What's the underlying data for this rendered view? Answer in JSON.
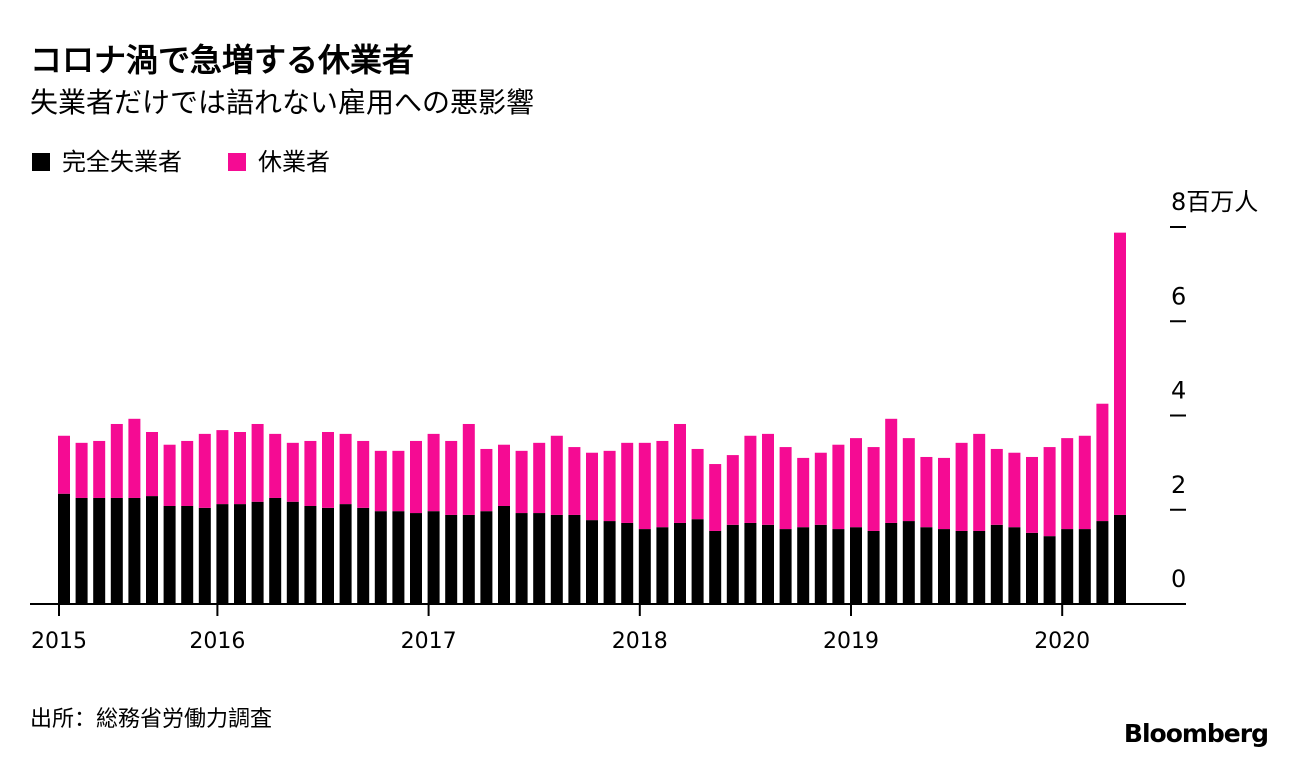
{
  "chart_data": {
    "type": "bar",
    "stacked": true,
    "title": "コロナ渦で急増する休業者",
    "subtitle": "失業者だけでは語れない雇用への悪影響",
    "source": "出所：総務省労働力調査",
    "brand": "Bloomberg",
    "categories": [
      "2015",
      null,
      null,
      null,
      null,
      null,
      null,
      null,
      null,
      "2016",
      null,
      null,
      null,
      null,
      null,
      null,
      null,
      null,
      null,
      null,
      null,
      "2017",
      null,
      null,
      null,
      null,
      null,
      null,
      null,
      null,
      null,
      null,
      null,
      "2018",
      null,
      null,
      null,
      null,
      null,
      null,
      null,
      null,
      null,
      null,
      null,
      "2019",
      null,
      null,
      null,
      null,
      null,
      null,
      null,
      null,
      null,
      null,
      null,
      "2020",
      null,
      null,
      null
    ],
    "series": [
      {
        "name": "完全失業者",
        "color": "#000000",
        "values": [
          2.34,
          2.25,
          2.25,
          2.25,
          2.25,
          2.29,
          2.08,
          2.08,
          2.04,
          2.12,
          2.12,
          2.17,
          2.25,
          2.17,
          2.08,
          2.04,
          2.12,
          2.04,
          1.97,
          1.97,
          1.93,
          1.97,
          1.89,
          1.89,
          1.97,
          2.08,
          1.93,
          1.93,
          1.89,
          1.89,
          1.78,
          1.76,
          1.72,
          1.59,
          1.63,
          1.72,
          1.8,
          1.55,
          1.68,
          1.72,
          1.68,
          1.59,
          1.63,
          1.68,
          1.59,
          1.63,
          1.55,
          1.72,
          1.76,
          1.63,
          1.59,
          1.55,
          1.55,
          1.68,
          1.63,
          1.51,
          1.44,
          1.59,
          1.59,
          1.76,
          1.89
        ]
      },
      {
        "name": "休業者",
        "color": "#f50b93",
        "values": [
          1.23,
          1.17,
          1.21,
          1.57,
          1.68,
          1.36,
          1.3,
          1.38,
          1.57,
          1.57,
          1.53,
          1.65,
          1.36,
          1.25,
          1.38,
          1.61,
          1.49,
          1.42,
          1.28,
          1.28,
          1.53,
          1.64,
          1.57,
          1.93,
          1.32,
          1.3,
          1.32,
          1.49,
          1.68,
          1.44,
          1.43,
          1.49,
          1.7,
          1.83,
          1.83,
          2.1,
          1.49,
          1.42,
          1.48,
          1.85,
          1.93,
          1.74,
          1.47,
          1.53,
          1.79,
          1.89,
          1.78,
          2.21,
          1.76,
          1.49,
          1.51,
          1.87,
          2.06,
          1.61,
          1.58,
          1.61,
          1.89,
          1.93,
          1.98,
          2.49,
          5.99
        ]
      }
    ],
    "ylim": [
      0,
      8
    ],
    "yticks": [
      0,
      2,
      4,
      6,
      {
        "value": 8,
        "label": "8百万人"
      }
    ],
    "legend": "top-left"
  }
}
